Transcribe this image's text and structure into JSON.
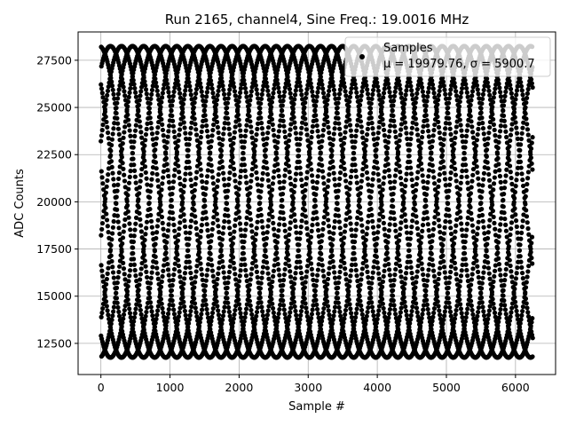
{
  "chart_data": {
    "type": "scatter",
    "title": "Run 2165, channel4, Sine Freq.: 19.0016 MHz",
    "xlabel": "Sample #",
    "ylabel": "ADC Counts",
    "xlim": [
      -330,
      6580
    ],
    "ylim": [
      10850,
      29000
    ],
    "x_ticks": [
      0,
      1000,
      2000,
      3000,
      4000,
      5000,
      6000
    ],
    "y_ticks": [
      12500,
      15000,
      17500,
      20000,
      22500,
      25000,
      27500
    ],
    "grid": true,
    "marker_color": "#000000",
    "legend": {
      "placement": "top-right",
      "entries": [
        {
          "marker": "circle",
          "label": "Samples",
          "stats": "μ = 19979.76, σ = 5900.7"
        }
      ]
    },
    "signal": {
      "description_free": true,
      "n_samples": 6250,
      "x_start": 0,
      "x_end": 6249,
      "mean": 19979.76,
      "sigma": 5900.7,
      "min": 11750,
      "max": 28250,
      "sine_freq_mhz": 19.0016
    }
  }
}
